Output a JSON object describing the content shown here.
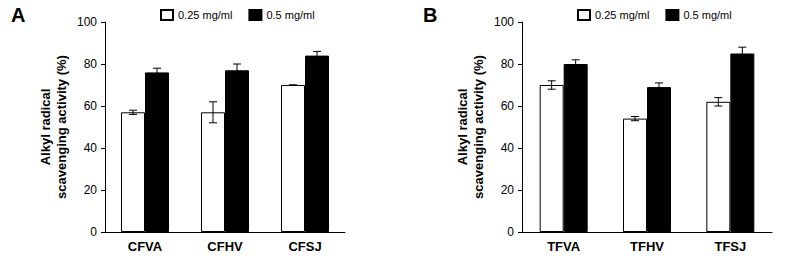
{
  "chart_data": [
    {
      "type": "bar",
      "title": "A",
      "categories": [
        "CFVA",
        "CFHV",
        "CFSJ"
      ],
      "series": [
        {
          "name": "0.25 mg/ml",
          "color": "#ffffff",
          "values": [
            57,
            57,
            70
          ],
          "errors": [
            1,
            5,
            0
          ]
        },
        {
          "name": "0.5 mg/ml",
          "color": "#000000",
          "values": [
            76,
            77,
            84
          ],
          "errors": [
            2,
            3,
            2
          ]
        }
      ],
      "ylabel": "Alkyl radical\nscavenging activity (%)",
      "ylim": [
        0,
        100
      ],
      "yticks": [
        0,
        20,
        40,
        60,
        80,
        100
      ],
      "grid": false,
      "legend": "top"
    },
    {
      "type": "bar",
      "title": "B",
      "categories": [
        "TFVA",
        "TFHV",
        "TFSJ"
      ],
      "series": [
        {
          "name": "0.25 mg/ml",
          "color": "#ffffff",
          "values": [
            70,
            54,
            62
          ],
          "errors": [
            2,
            1,
            2
          ]
        },
        {
          "name": "0.5 mg/ml",
          "color": "#000000",
          "values": [
            80,
            69,
            85
          ],
          "errors": [
            2,
            2,
            3
          ]
        }
      ],
      "ylabel": "Alkyl radical\nscavenging activity (%)",
      "ylim": [
        0,
        100
      ],
      "yticks": [
        0,
        20,
        40,
        60,
        80,
        100
      ],
      "grid": false,
      "legend": "top"
    }
  ]
}
